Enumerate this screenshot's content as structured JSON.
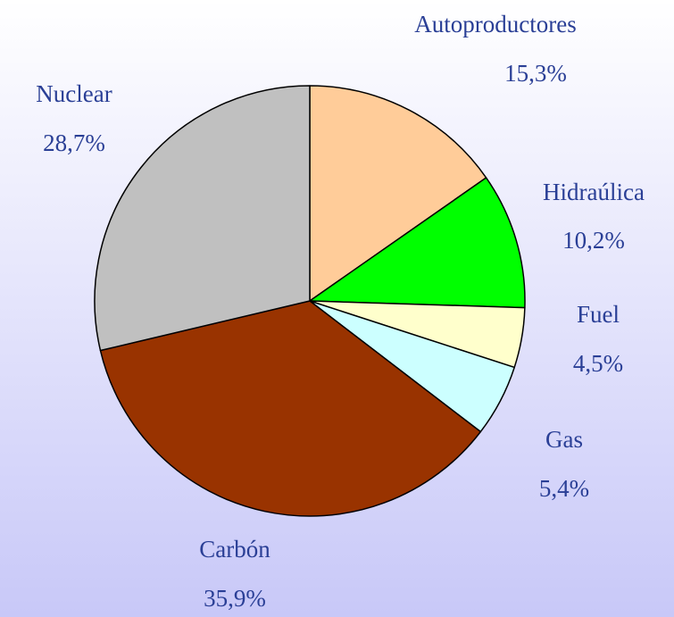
{
  "chart_data": {
    "type": "pie",
    "categories": [
      "Autoproductores",
      "Hidraúlica",
      "Fuel",
      "Gas",
      "Carbón",
      "Nuclear"
    ],
    "values": [
      15.3,
      10.2,
      4.5,
      5.4,
      35.9,
      28.7
    ],
    "value_labels": [
      "15,3%",
      "10,2%",
      "4,5%",
      "5,4%",
      "35,9%",
      "28,7%"
    ],
    "colors": [
      "#ffcc99",
      "#00ff00",
      "#ffffcc",
      "#ccffff",
      "#993300",
      "#c0c0c0"
    ]
  }
}
